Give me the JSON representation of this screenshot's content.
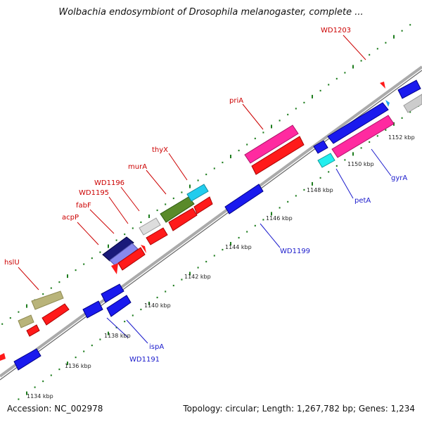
{
  "title": "Wolbachia endosymbiont of Drosophila melanogaster, complete ...",
  "footer": {
    "accession": "Accession: NC_002978",
    "summary": "Topology: circular; Length: 1,267,782 bp; Genes: 1,234"
  },
  "colors": {
    "backbone": "#888888",
    "forward_ticks": "#1e7d1e",
    "reverse_ticks": "#1e7d1e",
    "label_red": "#cc0000",
    "label_blue": "#1a1acc",
    "gene_red": "#ff1a1a",
    "gene_blue": "#1a1aee",
    "gene_pink": "#ff2aa0",
    "gene_cyan": "#22ccee",
    "gene_gray": "#cccccc",
    "gene_olive": "#5a8a2a",
    "gene_khaki": "#b9b47a",
    "gene_navy": "#1a1a7a",
    "gene_lavender": "#8888ee"
  },
  "scale_labels": [
    "1134 kbp",
    "1136 kbp",
    "1138 kbp",
    "1140 kbp",
    "1142 kbp",
    "1144 kbp",
    "1146 kbp",
    "1148 kbp",
    "1150 kbp",
    "1152 kbp"
  ],
  "gene_labels_top": [
    "hslU",
    "acpP",
    "fabF",
    "WD1195",
    "WD1196",
    "murA",
    "thyX",
    "priA",
    "WD1203"
  ],
  "gene_labels_bottom": [
    "WD1191",
    "ispA",
    "WD1199",
    "petA",
    "gyrA"
  ]
}
